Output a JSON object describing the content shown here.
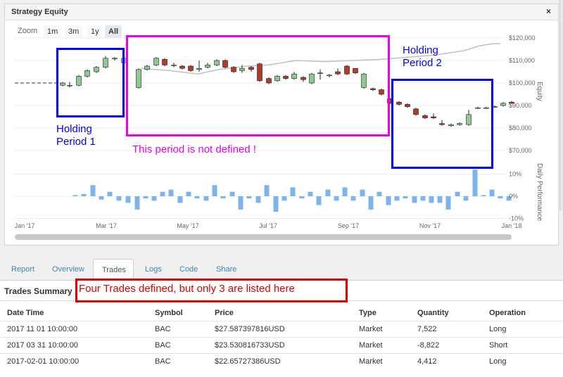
{
  "panel": {
    "title": "Strategy Equity",
    "close_icon": "×"
  },
  "zoom": {
    "label": "Zoom",
    "buttons": [
      "1m",
      "3m",
      "1y",
      "All"
    ],
    "active": "All"
  },
  "chart_data": {
    "type": "candlestick",
    "title": "",
    "x_ticks": [
      "Jan '17",
      "Mar '17",
      "May '17",
      "Jul '17",
      "Sep '17",
      "Nov '17",
      "Jan '18"
    ],
    "equity_axis": {
      "label": "Equity",
      "ticks": [
        "$120,000",
        "$110,000",
        "$100,000",
        "$90,000",
        "$80,000",
        "$70,000"
      ],
      "ylim": [
        65000,
        121000
      ]
    },
    "performance_axis": {
      "label": "Daily Performance",
      "ticks": [
        "10%",
        "0%",
        "-10%"
      ],
      "ylim": [
        -11,
        12
      ]
    },
    "flat_equity_start": {
      "x": [
        0,
        66
      ],
      "value": 100000
    },
    "candles": [
      [
        68,
        99000,
        100000,
        98500,
        100500
      ],
      [
        78,
        99000,
        99000,
        98000,
        100500
      ],
      [
        91,
        99000,
        103000,
        98500,
        103500
      ],
      [
        103,
        103000,
        105500,
        102500,
        106000
      ],
      [
        116,
        105000,
        107000,
        104500,
        107500
      ],
      [
        129,
        107000,
        111000,
        106500,
        112000
      ],
      [
        142,
        111000,
        111000,
        110000,
        111500
      ],
      [
        155,
        109000,
        111000,
        108500,
        111500
      ],
      [
        176,
        98000,
        106000,
        97500,
        106500
      ],
      [
        188,
        106000,
        107500,
        105500,
        108000
      ],
      [
        201,
        108000,
        111000,
        107500,
        111500
      ],
      [
        213,
        110500,
        108000,
        107500,
        111000
      ],
      [
        226,
        108000,
        108000,
        107000,
        109000
      ],
      [
        238,
        107500,
        106500,
        106000,
        108000
      ],
      [
        250,
        107500,
        105500,
        105000,
        108000
      ],
      [
        262,
        106000,
        106500,
        105000,
        110000
      ],
      [
        274,
        107000,
        108000,
        106500,
        109000
      ],
      [
        287,
        108000,
        110000,
        107500,
        110500
      ],
      [
        299,
        110000,
        107000,
        106500,
        110500
      ],
      [
        311,
        107000,
        105000,
        104500,
        107500
      ],
      [
        323,
        105500,
        106500,
        104500,
        108000
      ],
      [
        336,
        107000,
        106000,
        105000,
        107500
      ],
      [
        348,
        108500,
        101000,
        100500,
        109000
      ],
      [
        361,
        102000,
        100000,
        99500,
        102500
      ],
      [
        373,
        101000,
        103000,
        100500,
        103500
      ],
      [
        385,
        103000,
        102000,
        101500,
        103500
      ],
      [
        397,
        102000,
        104000,
        101500,
        105000
      ],
      [
        410,
        102500,
        101500,
        100500,
        103000
      ],
      [
        422,
        100000,
        104000,
        99500,
        104500
      ],
      [
        434,
        104500,
        104500,
        101500,
        106000
      ],
      [
        447,
        103500,
        103500,
        102500,
        104000
      ],
      [
        459,
        105000,
        104000,
        103500,
        106500
      ],
      [
        472,
        107500,
        104000,
        103500,
        108000
      ],
      [
        484,
        106500,
        104500,
        104000,
        106500
      ],
      [
        496,
        98000,
        104000,
        97500,
        104500
      ],
      [
        509,
        97500,
        97000,
        96500,
        98000
      ],
      [
        521,
        97000,
        95000,
        94500,
        97500
      ],
      [
        533,
        93000,
        91000,
        90500,
        93500
      ],
      [
        546,
        91500,
        90500,
        90000,
        92000
      ],
      [
        558,
        90500,
        89500,
        89000,
        91000
      ],
      [
        570,
        88500,
        86000,
        85500,
        89000
      ],
      [
        583,
        85500,
        84500,
        84000,
        86000
      ],
      [
        595,
        85000,
        84500,
        84000,
        86500
      ],
      [
        607,
        82000,
        81500,
        81000,
        83500
      ],
      [
        620,
        81000,
        81500,
        80500,
        82000
      ],
      [
        632,
        81500,
        82000,
        81000,
        82500
      ],
      [
        645,
        81500,
        86000,
        81000,
        88000
      ],
      [
        658,
        89000,
        89000,
        88500,
        89500
      ],
      [
        670,
        89000,
        89000,
        88500,
        89500
      ],
      [
        682,
        89500,
        89500,
        89000,
        90000
      ],
      [
        694,
        90000,
        91000,
        89500,
        91500
      ],
      [
        706,
        91500,
        91000,
        90500,
        92000
      ]
    ],
    "benchmark_line": [
      [
        180,
        106500
      ],
      [
        220,
        105500
      ],
      [
        260,
        104000
      ],
      [
        290,
        106000
      ],
      [
        330,
        107500
      ],
      [
        360,
        108000
      ],
      [
        400,
        110000
      ],
      [
        440,
        109500
      ],
      [
        480,
        110000
      ],
      [
        520,
        110500
      ],
      [
        560,
        111500
      ],
      [
        600,
        112500
      ],
      [
        640,
        114500
      ],
      [
        660,
        116500
      ],
      [
        680,
        117500
      ],
      [
        690,
        117500
      ]
    ],
    "performance_bars": [
      [
        86,
        0.5
      ],
      [
        98,
        1
      ],
      [
        111,
        5
      ],
      [
        123,
        -1.5
      ],
      [
        135,
        2
      ],
      [
        148,
        -2
      ],
      [
        161,
        -3
      ],
      [
        174,
        -6
      ],
      [
        186,
        -1
      ],
      [
        198,
        -2
      ],
      [
        210,
        2
      ],
      [
        222,
        3
      ],
      [
        235,
        -3
      ],
      [
        247,
        2
      ],
      [
        259,
        -1
      ],
      [
        272,
        -2
      ],
      [
        284,
        5
      ],
      [
        296,
        -1
      ],
      [
        309,
        2
      ],
      [
        321,
        -6
      ],
      [
        333,
        -1
      ],
      [
        346,
        -3
      ],
      [
        358,
        5
      ],
      [
        371,
        -7
      ],
      [
        383,
        -2
      ],
      [
        395,
        4
      ],
      [
        408,
        -1
      ],
      [
        420,
        2
      ],
      [
        432,
        -4
      ],
      [
        445,
        3
      ],
      [
        457,
        -2
      ],
      [
        469,
        4
      ],
      [
        481,
        -2
      ],
      [
        494,
        3
      ],
      [
        506,
        -6
      ],
      [
        518,
        2
      ],
      [
        531,
        -4
      ],
      [
        543,
        -2
      ],
      [
        555,
        -1
      ],
      [
        568,
        -3
      ],
      [
        580,
        -2
      ],
      [
        592,
        -3
      ],
      [
        604,
        -3
      ],
      [
        616,
        -6
      ],
      [
        629,
        2
      ],
      [
        641,
        -2
      ],
      [
        654,
        12
      ],
      [
        666,
        0.5
      ],
      [
        678,
        3
      ],
      [
        690,
        -1
      ],
      [
        702,
        -2
      ]
    ]
  },
  "annotations": {
    "holding_period_1": {
      "line1": "Holding",
      "line2": "Period 1",
      "color": "#0000ff"
    },
    "holding_period_2": {
      "line1": "Holding",
      "line2": "Period 2",
      "color": "#0000ff"
    },
    "undefined_period": {
      "text": "This period is not defined !",
      "color": "#ee00ee"
    },
    "trades_note": {
      "text": "Four Trades defined, but only 3 are listed here",
      "color": "#e00000"
    }
  },
  "tabs": [
    "Report",
    "Overview",
    "Trades",
    "Logs",
    "Code",
    "Share"
  ],
  "active_tab": "Trades",
  "trades_summary": {
    "title": "Trades Summary",
    "columns": [
      "Date Time",
      "Symbol",
      "Price",
      "Type",
      "Quantity",
      "Operation"
    ],
    "rows": [
      [
        "2017 11 01 10:00:00",
        "BAC",
        "$27.587397816USD",
        "Market",
        "7,522",
        "Long"
      ],
      [
        "2017 03 31 10:00:00",
        "BAC",
        "$23.530816733USD",
        "Market",
        "-8,822",
        "Short"
      ],
      [
        "2017-02-01 10:00:00",
        "BAC",
        "$22.65727386USD",
        "Market",
        "4,412",
        "Long"
      ]
    ]
  },
  "colors": {
    "bull": "#90c891",
    "bear": "#b33a28",
    "perf_bar": "#7cb5ec",
    "benchmark": "#c0c0c0",
    "tab_link": "#4682b4"
  }
}
